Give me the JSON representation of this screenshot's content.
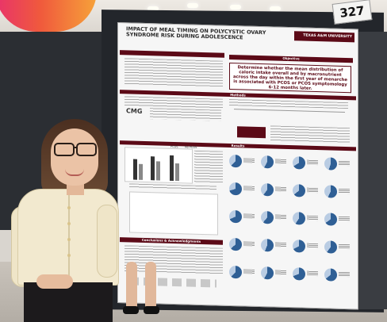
{
  "board_number": "327",
  "poster": {
    "title": "IMPACT OF MEAL TIMING ON POLYCYSTIC OVARY SYNDROME RISK DURING ADOLESCENCE",
    "authors": "",
    "institution": "TEXAS A&M UNIVERSITY",
    "objective_header": "Objective",
    "objective_text": "Determine whether the mean distribution of caloric intake overall and by macronutrient across the day within the first year of menarche is associated with PCOS or PCOS symptomology 6-12 months later.",
    "methods_header": "Methods",
    "results_header": "Results",
    "conclusions_header": "Conclusions & Acknowledgments",
    "legend_pcos": "PCOS",
    "legend_nopcos": "No PCOS",
    "study_logo": "CMG"
  },
  "colors": {
    "maroon": "#5c0a17",
    "pie_blue": "#2f5f95",
    "pie_light": "#b9cce3"
  }
}
